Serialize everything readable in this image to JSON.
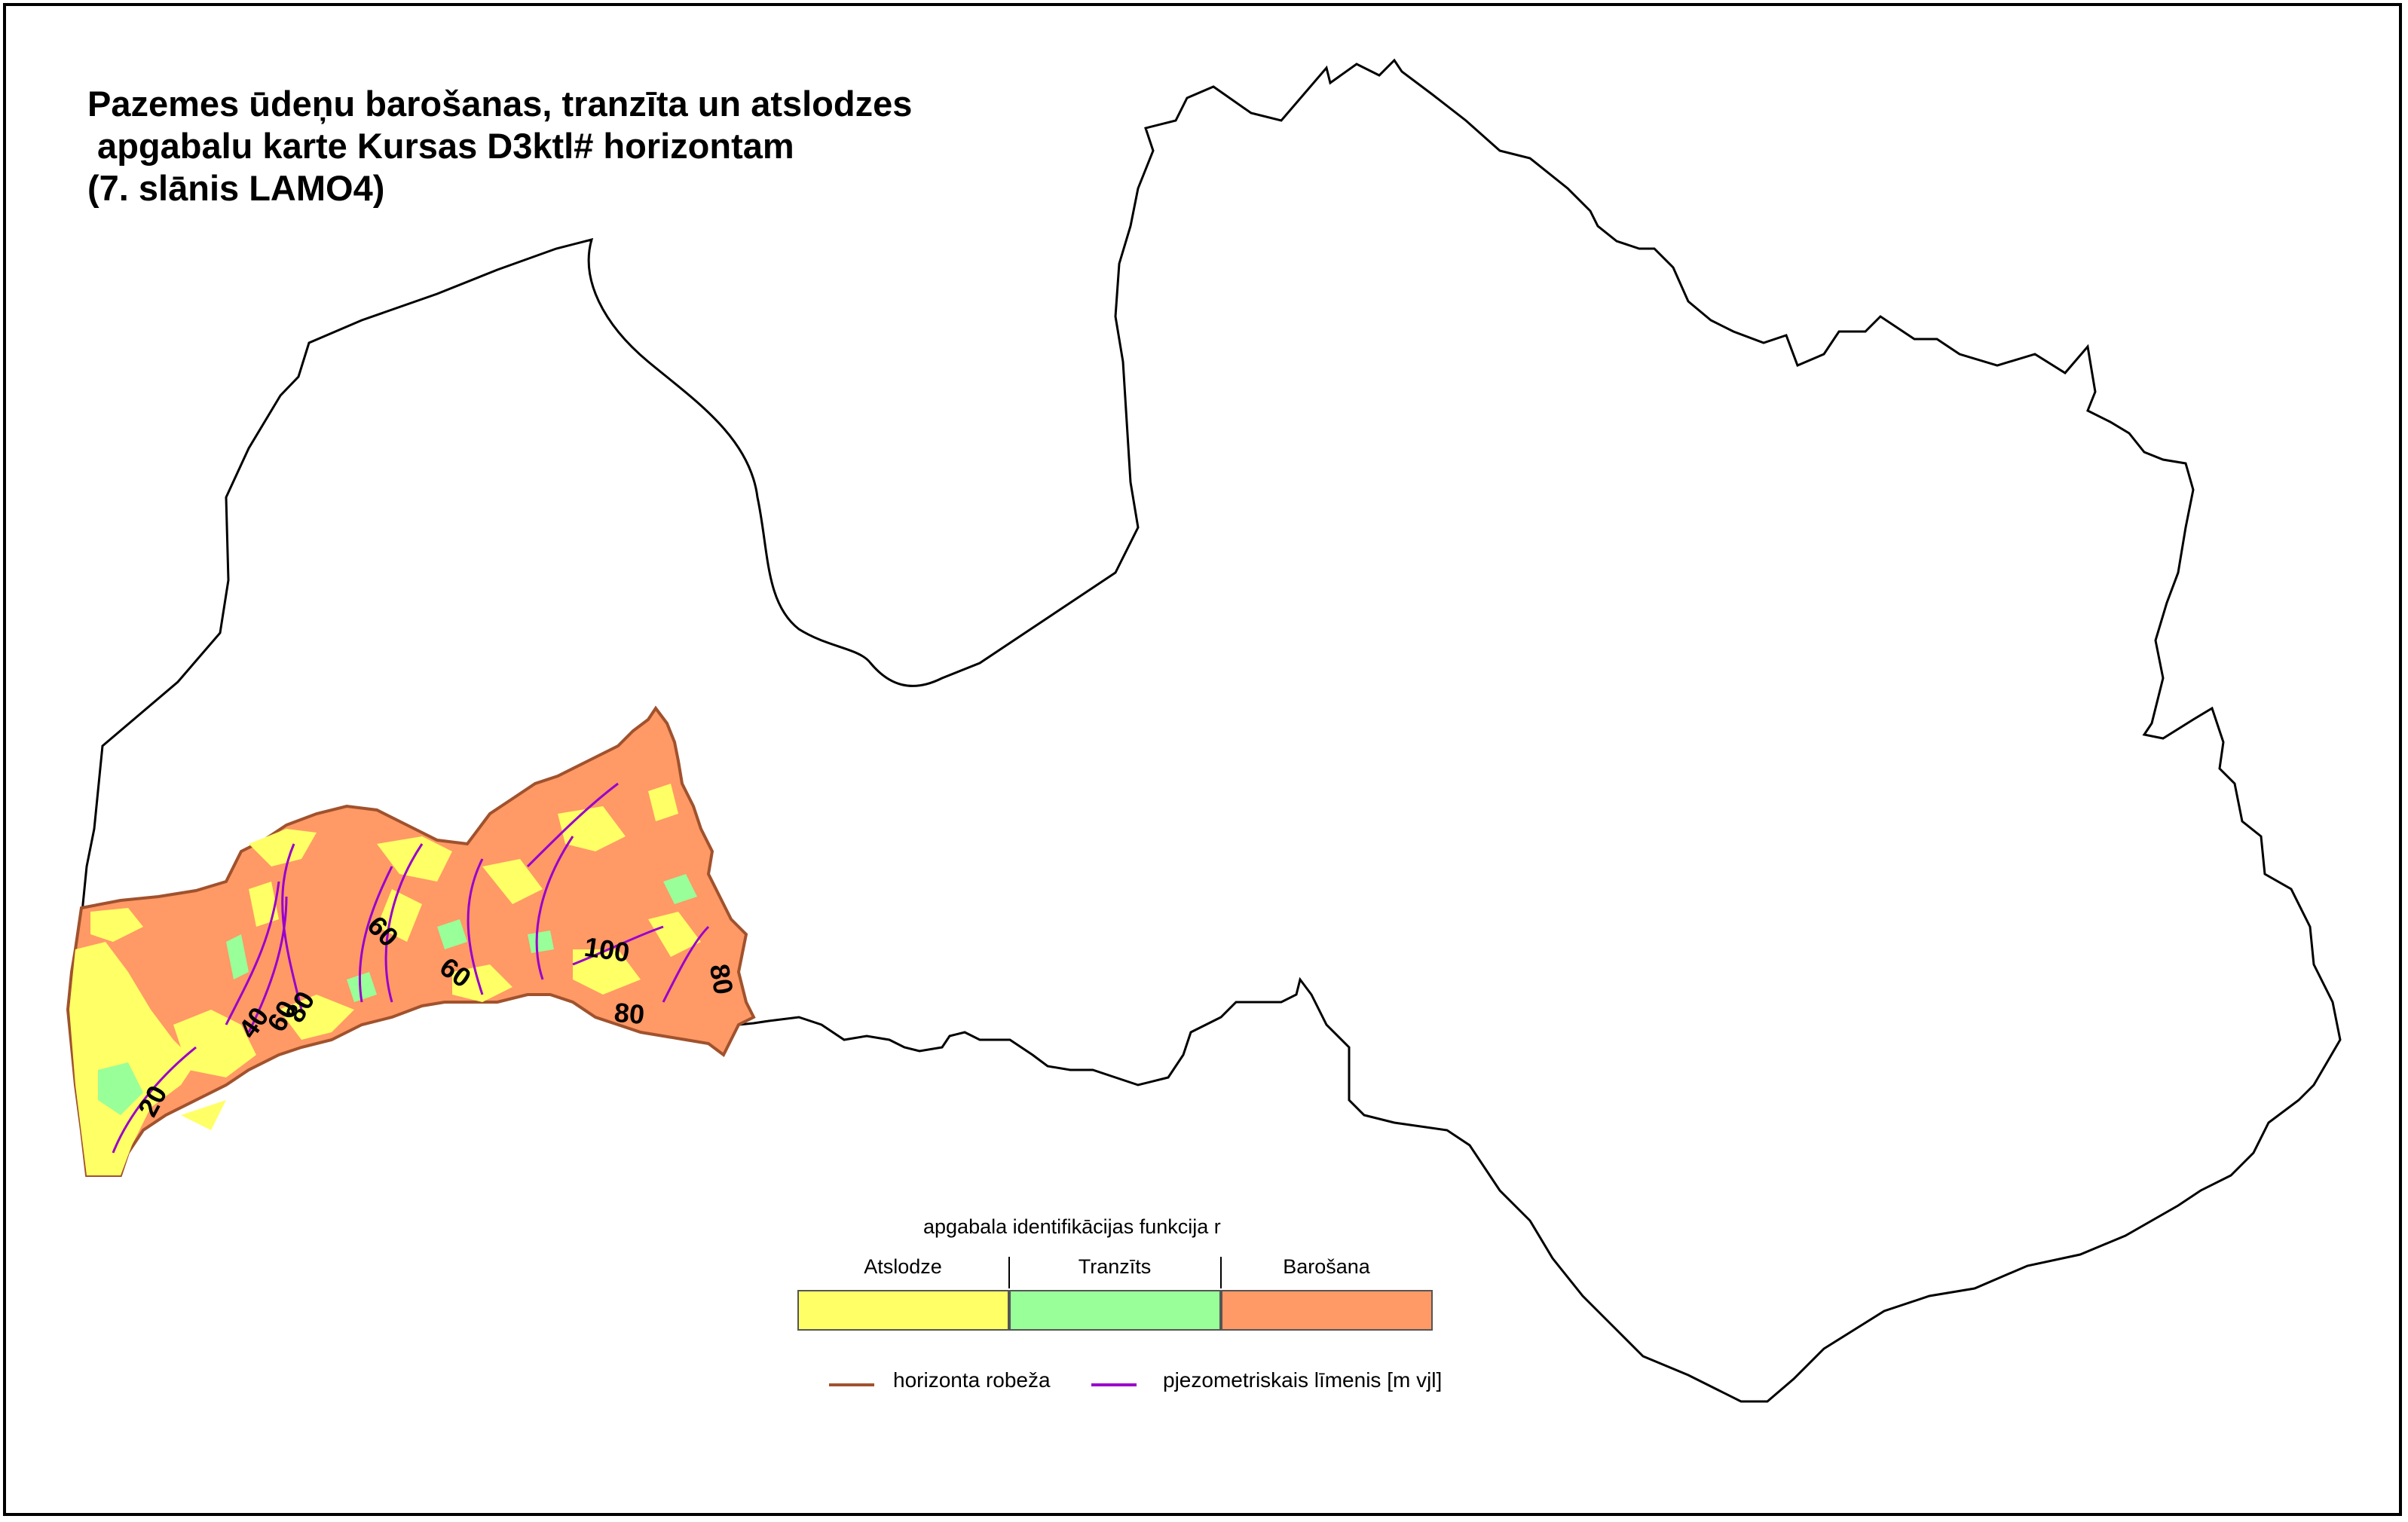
{
  "title": {
    "line1": "Pazemes ūdeņu barošanas, tranzīta un atslodzes",
    "line2": " apgabalu karte Kursas D3ktl# horizontam",
    "line3": "(7. slānis LAMO4)"
  },
  "legend": {
    "heading": "apgabala identifikācijas funkcija r",
    "categories": [
      {
        "label": "Atslodze",
        "color": "#ffff66"
      },
      {
        "label": "Tranzīts",
        "color": "#99ff99"
      },
      {
        "label": "Barošana",
        "color": "#ff9966"
      }
    ],
    "lines": [
      {
        "label": "horizonta robeža",
        "color": "#a0522d"
      },
      {
        "label": "pjezometriskais līmenis [m vjl]",
        "color": "#9900cc"
      }
    ]
  },
  "contour_labels": [
    {
      "id": "c20",
      "text": "20"
    },
    {
      "id": "c40",
      "text": "40"
    },
    {
      "id": "c60a",
      "text": "60"
    },
    {
      "id": "c80a",
      "text": "80"
    },
    {
      "id": "c60b",
      "text": "60"
    },
    {
      "id": "c60c",
      "text": "60"
    },
    {
      "id": "c100",
      "text": "100"
    },
    {
      "id": "c80b",
      "text": "80"
    },
    {
      "id": "c80c",
      "text": "80"
    }
  ],
  "colors": {
    "atslodze": "#ffff66",
    "tranzits": "#99ff99",
    "barosana": "#ff9966",
    "border": "#000000",
    "horizon_boundary": "#a0522d",
    "piezometric": "#9900cc"
  }
}
